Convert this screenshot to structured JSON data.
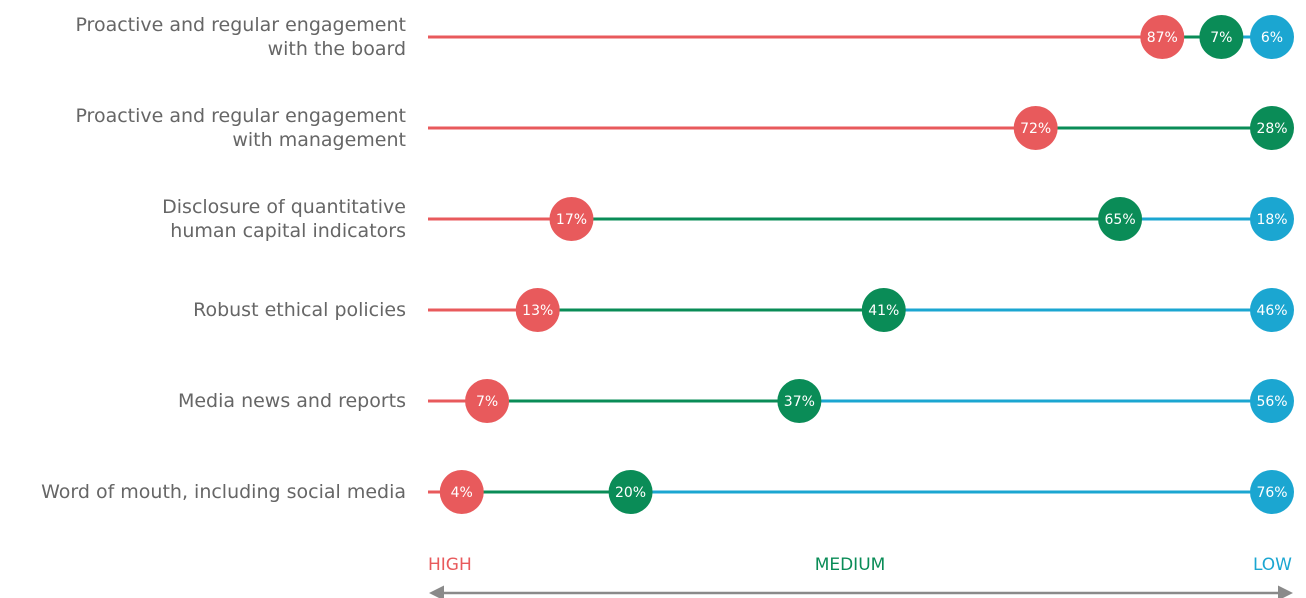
{
  "chart_data": {
    "type": "dot-stack",
    "categories": [
      "Proactive and regular engagement\nwith the board",
      "Proactive and regular engagement\nwith management",
      "Disclosure of quantitative\nhuman capital indicators",
      "Robust ethical policies",
      "Media news and reports",
      "Word of mouth, including social media"
    ],
    "series": [
      {
        "name": "HIGH",
        "color": "#e85a5c",
        "values": [
          87,
          72,
          17,
          13,
          7,
          4
        ],
        "value_labels": [
          "87%",
          "72%",
          "17%",
          "13%",
          "7%",
          "4%"
        ]
      },
      {
        "name": "MEDIUM",
        "color": "#0a8c57",
        "values": [
          7,
          28,
          65,
          41,
          37,
          20
        ],
        "value_labels": [
          "7%",
          "28%",
          "65%",
          "41%",
          "37%",
          "20%"
        ]
      },
      {
        "name": "LOW",
        "color": "#1ba6d1",
        "values": [
          6,
          null,
          18,
          46,
          56,
          76
        ],
        "value_labels": [
          "6%",
          null,
          "18%",
          "46%",
          "56%",
          "76%"
        ]
      }
    ],
    "xlim": [
      0,
      100
    ]
  }
}
